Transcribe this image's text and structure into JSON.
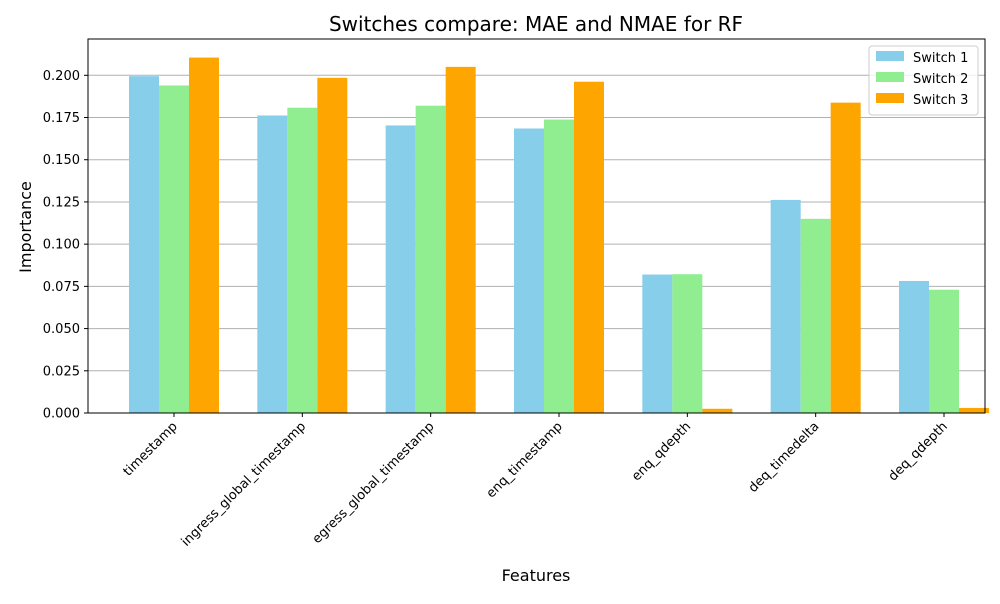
{
  "chart_data": {
    "type": "bar",
    "title": "Switches compare: MAE and NMAE for RF",
    "xlabel": "Features",
    "ylabel": "Importance",
    "categories": [
      "timestamp",
      "ingress_global_timestamp",
      "egress_global_timestamp",
      "enq_timestamp",
      "enq_qdepth",
      "deq_timedelta",
      "deq_qdepth"
    ],
    "series": [
      {
        "name": "Switch 1",
        "color": "#87ceeb",
        "values": [
          0.1995,
          0.1762,
          0.1703,
          0.1685,
          0.082,
          0.1262,
          0.0782
        ]
      },
      {
        "name": "Switch 2",
        "color": "#90ee90",
        "values": [
          0.194,
          0.1808,
          0.182,
          0.1738,
          0.0822,
          0.115,
          0.073
        ]
      },
      {
        "name": "Switch 3",
        "color": "#ffa500",
        "values": [
          0.2105,
          0.1985,
          0.205,
          0.1962,
          0.0025,
          0.1838,
          0.003
        ]
      }
    ],
    "ylim": [
      0,
      0.2215
    ],
    "yticks": [
      "0.000",
      "0.025",
      "0.050",
      "0.075",
      "0.100",
      "0.125",
      "0.150",
      "0.175",
      "0.200"
    ],
    "grid": "y-major",
    "legend": "top-right"
  }
}
